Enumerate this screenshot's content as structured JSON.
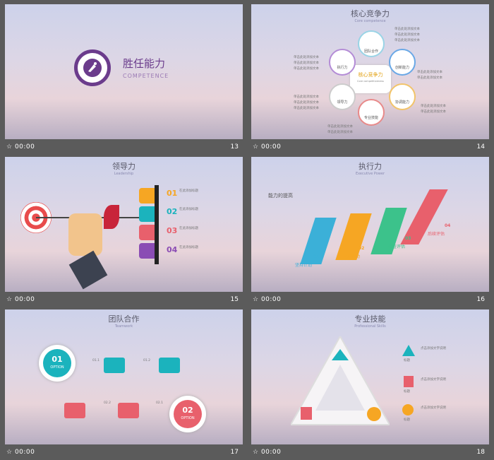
{
  "slides": [
    {
      "num": "13",
      "time": "00:00",
      "title": "胜任能力",
      "subtitle": "COMPETENCE"
    },
    {
      "num": "14",
      "time": "00:00",
      "title": "核心竞争力",
      "subtitle": "Core competence",
      "center": "核心竞争力",
      "center_sub": "Core competitiveness",
      "stars": [
        "团队合作",
        "执行力",
        "创新能力",
        "领导力",
        "协调能力",
        "专业技能"
      ],
      "note": "单击此处添加文本"
    },
    {
      "num": "15",
      "time": "00:00",
      "title": "领导力",
      "subtitle": "Leadership",
      "items": [
        {
          "n": "01",
          "t": "在此添加标题"
        },
        {
          "n": "02",
          "t": "在此添加标题"
        },
        {
          "n": "03",
          "t": "在此添加标题"
        },
        {
          "n": "04",
          "t": "在此添加标题"
        }
      ]
    },
    {
      "num": "16",
      "time": "00:00",
      "title": "执行力",
      "subtitle": "Executive Power",
      "heading": "能力的提高",
      "steps": [
        {
          "n": "01",
          "t": "坚持计划"
        },
        {
          "n": "02",
          "t": "立即行动"
        },
        {
          "n": "03",
          "t": "检查评估"
        },
        {
          "n": "04",
          "t": "后续评估"
        }
      ]
    },
    {
      "num": "17",
      "time": "00:00",
      "title": "团队合作",
      "subtitle": "Teamwork",
      "badge1": {
        "n": "01",
        "t": "OPTION"
      },
      "badge2": {
        "n": "02",
        "t": "OPTION"
      },
      "tags": [
        "01.1",
        "01.2",
        "02.2",
        "02.1"
      ]
    },
    {
      "num": "18",
      "time": "00:00",
      "title": "专业技能",
      "subtitle": "Professional Skills",
      "labels": [
        "标题",
        "标题",
        "标题"
      ],
      "desc": "点击添加文字说明"
    }
  ],
  "colors": {
    "purple": "#6b3c8c",
    "teal": "#1bb3bd",
    "red": "#e8606c",
    "orange": "#f6a623",
    "green": "#3cc28b",
    "blue": "#4a90e2"
  }
}
